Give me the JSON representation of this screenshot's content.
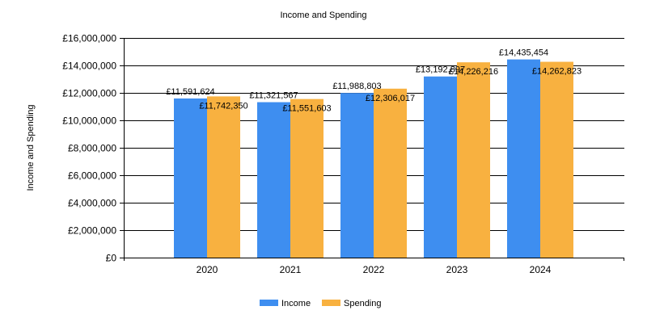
{
  "chart_data": {
    "type": "bar",
    "title": "Income and Spending",
    "xlabel": "",
    "ylabel": "Income and Spending",
    "categories": [
      "2020",
      "2021",
      "2022",
      "2023",
      "2024"
    ],
    "series": [
      {
        "name": "Income",
        "color": "#3e8ef0",
        "values": [
          11591624,
          11321567,
          11988803,
          13192897,
          14435454
        ],
        "labels": [
          "£11,591,624",
          "£11,321,567",
          "£11,988,803",
          "£13,192,897",
          "£14,435,454"
        ]
      },
      {
        "name": "Spending",
        "color": "#f8b140",
        "values": [
          11742350,
          11551603,
          12306017,
          14226216,
          14262823
        ],
        "labels": [
          "£11,742,350",
          "£11,551,603",
          "£12,306,017",
          "£14,226,216",
          "£14,262,823"
        ]
      }
    ],
    "ylim": [
      0,
      16000000
    ],
    "yticks": [
      0,
      2000000,
      4000000,
      6000000,
      8000000,
      10000000,
      12000000,
      14000000,
      16000000
    ],
    "ytick_labels": [
      "£0",
      "£2,000,000",
      "£4,000,000",
      "£6,000,000",
      "£8,000,000",
      "£10,000,000",
      "£12,000,000",
      "£14,000,000",
      "£16,000,000"
    ],
    "grid": true,
    "legend": "bottom-center"
  }
}
